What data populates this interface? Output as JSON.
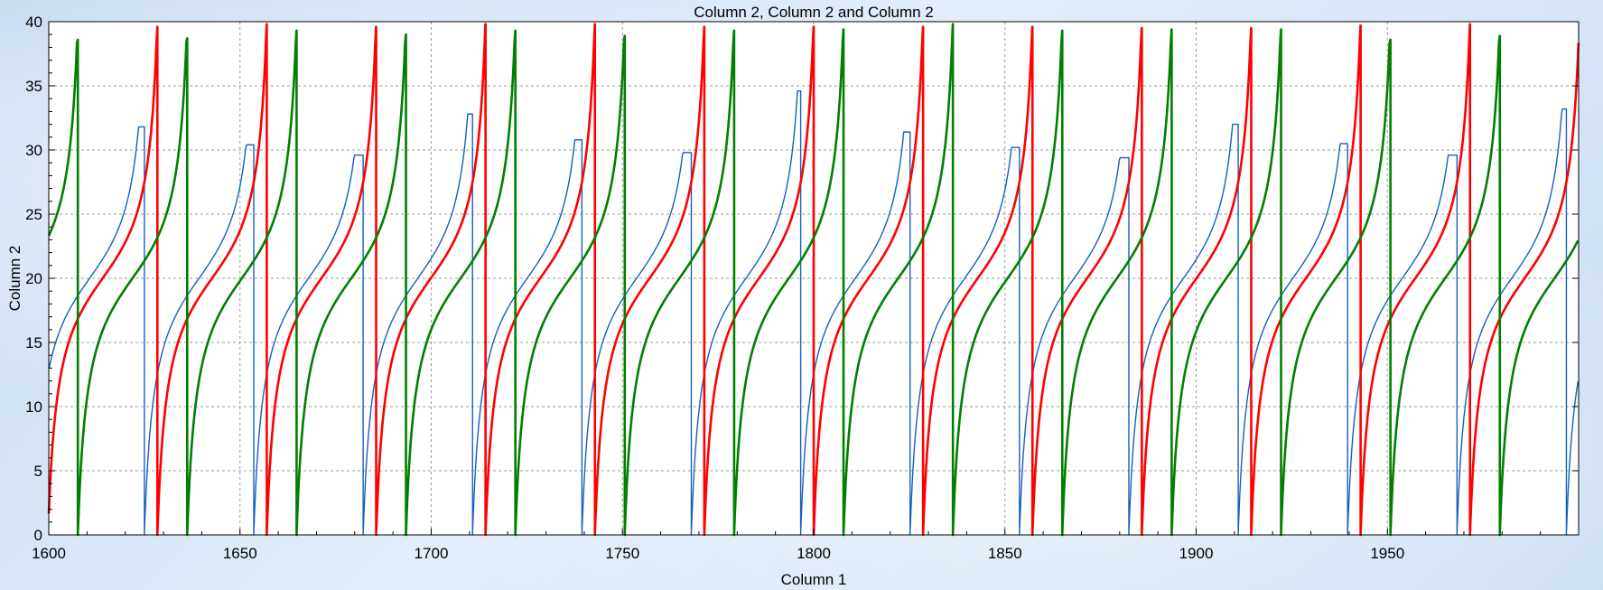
{
  "chart_data": {
    "type": "line",
    "title": "Column 2, Column 2 and Column 2",
    "xlabel": "Column 1",
    "ylabel": "Column 2",
    "xlim": [
      1600,
      2000
    ],
    "ylim": [
      0,
      40
    ],
    "xticks": [
      1600,
      1650,
      1700,
      1750,
      1800,
      1850,
      1900,
      1950
    ],
    "yticks": [
      0,
      5,
      10,
      15,
      20,
      25,
      30,
      35,
      40
    ],
    "grid": true,
    "legend": "none",
    "series": [
      {
        "color": "#1560bd",
        "shape": "sawtooth",
        "period": 28.6,
        "phase_x": 1625.0,
        "start": 0,
        "peaks": [
          31.8,
          30.4,
          29.6,
          32.8,
          30.8,
          29.8,
          34.6,
          31.4,
          30.2,
          29.4,
          32.0,
          30.5,
          29.6,
          33.2
        ]
      },
      {
        "color": "#ff0000",
        "shape": "sawtooth",
        "period": 28.6,
        "phase_x": 1628.4,
        "start": 0.3,
        "peaks": [
          39.6,
          39.8,
          39.6,
          39.8,
          39.8,
          39.6,
          39.6,
          39.6,
          39.6,
          39.5,
          39.5,
          39.7,
          39.8
        ]
      },
      {
        "color": "#008000",
        "shape": "sawtooth",
        "period": 28.6,
        "phase_x": 1607.6,
        "start": 20,
        "peaks": [
          38.6,
          38.7,
          39.3,
          39.0,
          39.3,
          38.9,
          39.3,
          39.4,
          39.8,
          39.3,
          39.4,
          39.4,
          38.6,
          38.9
        ]
      }
    ]
  }
}
